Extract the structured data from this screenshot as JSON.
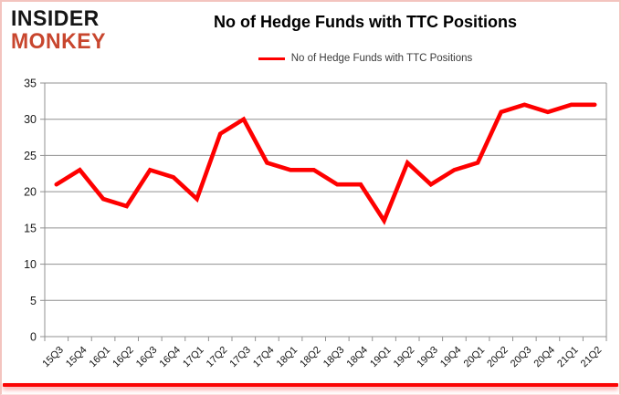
{
  "logo": {
    "line1": "INSIDER",
    "line2": "MONKEY"
  },
  "header": {
    "title": "No of Hedge Funds with TTC Positions"
  },
  "legend": {
    "label": "No of Hedge Funds with TTC Positions"
  },
  "colors": {
    "line": "#fe0000",
    "grid": "#909090",
    "axis_text": "#1a1a1a",
    "logo_red": "#c8462e",
    "bottom_rule": "#fb0404"
  },
  "chart_data": {
    "type": "line",
    "title": "No of Hedge Funds with TTC Positions",
    "categories": [
      "15Q3",
      "15Q4",
      "16Q1",
      "16Q2",
      "16Q3",
      "16Q4",
      "17Q1",
      "17Q2",
      "17Q3",
      "17Q4",
      "18Q1",
      "18Q2",
      "18Q3",
      "18Q4",
      "19Q1",
      "19Q2",
      "19Q3",
      "19Q4",
      "20Q1",
      "20Q2",
      "20Q3",
      "20Q4",
      "21Q1",
      "21Q2"
    ],
    "series": [
      {
        "name": "No of Hedge Funds with TTC Positions",
        "color": "#fe0000",
        "values": [
          21,
          23,
          19,
          18,
          23,
          22,
          19,
          28,
          30,
          24,
          23,
          23,
          21,
          21,
          16,
          24,
          21,
          23,
          24,
          31,
          32,
          31,
          32,
          32
        ]
      }
    ],
    "xlabel": "",
    "ylabel": "",
    "ylim": [
      0,
      35
    ],
    "ytick_step": 5,
    "grid": true,
    "legend_position": "top-center"
  }
}
